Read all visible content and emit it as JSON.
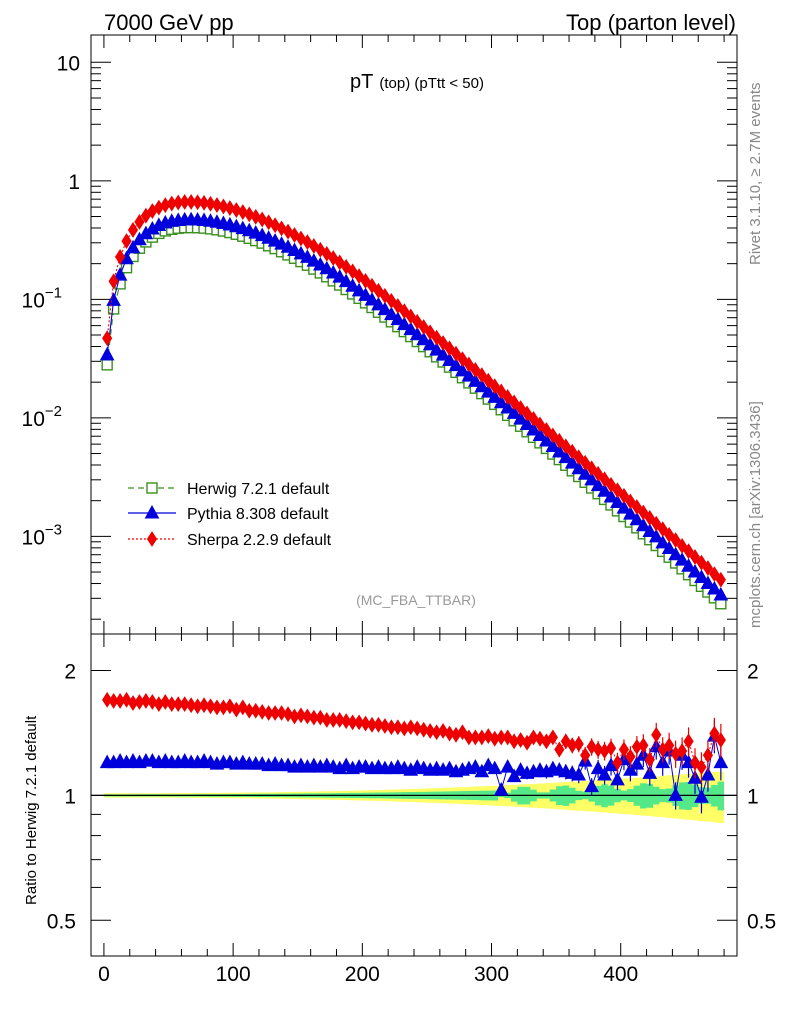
{
  "header": {
    "left": "7000 GeV pp",
    "right": "Top (parton level)"
  },
  "side_labels": {
    "rivet": "Rivet 3.1.10, ≥ 2.7M events",
    "mcplots": "mcplots.cern.ch [arXiv:1306.3436]"
  },
  "plot_title": {
    "main": "pT",
    "sub": "(top) (pTtt < 50)"
  },
  "watermark": "(MC_FBA_TTBAR)",
  "main_yticks": [
    {
      "base": "10",
      "exp": ""
    },
    {
      "base": "1",
      "exp": ""
    },
    {
      "base": "10",
      "exp": "−1"
    },
    {
      "base": "10",
      "exp": "−2"
    },
    {
      "base": "10",
      "exp": "−3"
    }
  ],
  "ratio_ylabel": "Ratio to Herwig 7.2.1 default",
  "ratio_yticks": [
    "2",
    "1",
    "0.5"
  ],
  "xticks": [
    "0",
    "100",
    "200",
    "300",
    "400"
  ],
  "colors": {
    "herwig": "#3a8f1f",
    "pythia": "#0000dd",
    "sherpa": "#ee0000",
    "band_inner": "#55e888",
    "band_outer": "#ffff66"
  },
  "chart_data": [
    {
      "type": "scatter",
      "title": "pT (top) (pTtt < 50)",
      "xlim": [
        -10,
        490
      ],
      "ylim": [
        0.00015,
        17
      ],
      "yscale": "log",
      "legend_position": "bottom-left",
      "x": [
        2.5,
        7.5,
        12.5,
        17.5,
        22.5,
        27.5,
        32.5,
        37.5,
        42.5,
        47.5,
        52.5,
        57.5,
        62.5,
        67.5,
        72.5,
        77.5,
        82.5,
        87.5,
        92.5,
        97.5,
        102.5,
        107.5,
        112.5,
        117.5,
        122.5,
        127.5,
        132.5,
        137.5,
        142.5,
        147.5,
        152.5,
        157.5,
        162.5,
        167.5,
        172.5,
        177.5,
        182.5,
        187.5,
        192.5,
        197.5,
        202.5,
        207.5,
        212.5,
        217.5,
        222.5,
        227.5,
        232.5,
        237.5,
        242.5,
        247.5,
        252.5,
        257.5,
        262.5,
        267.5,
        272.5,
        277.5,
        282.5,
        287.5,
        292.5,
        297.5,
        302.5,
        307.5,
        312.5,
        317.5,
        322.5,
        327.5,
        332.5,
        337.5,
        342.5,
        347.5,
        352.5,
        357.5,
        362.5,
        367.5,
        372.5,
        377.5,
        382.5,
        387.5,
        392.5,
        397.5,
        402.5,
        407.5,
        412.5,
        417.5,
        422.5,
        427.5,
        432.5,
        437.5,
        442.5,
        447.5,
        452.5,
        457.5,
        462.5,
        467.5,
        472.5,
        477.5
      ],
      "series": [
        {
          "name": "Herwig 7.2.1 default",
          "values": [
            0.028,
            0.083,
            0.135,
            0.185,
            0.23,
            0.27,
            0.305,
            0.335,
            0.36,
            0.378,
            0.39,
            0.398,
            0.402,
            0.403,
            0.402,
            0.399,
            0.393,
            0.386,
            0.377,
            0.366,
            0.354,
            0.341,
            0.327,
            0.313,
            0.298,
            0.283,
            0.268,
            0.252,
            0.237,
            0.222,
            0.208,
            0.194,
            0.18,
            0.167,
            0.155,
            0.143,
            0.132,
            0.121,
            0.111,
            0.102,
            0.0933,
            0.0853,
            0.0778,
            0.0709,
            0.0646,
            0.0588,
            0.0534,
            0.0485,
            0.044,
            0.0399,
            0.0361,
            0.0327,
            0.0296,
            0.0268,
            0.0242,
            0.0218,
            0.0197,
            0.0178,
            0.016,
            0.0144,
            0.013,
            0.0117,
            0.0105,
            0.00945,
            0.0085,
            0.00763,
            0.00685,
            0.00615,
            0.00552,
            0.00495,
            0.00444,
            0.00398,
            0.00357,
            0.0032,
            0.00286,
            0.00256,
            0.00229,
            0.00205,
            0.00184,
            0.00164,
            0.00147,
            0.00132,
            0.00118,
            0.00105,
            0.000937,
            0.000837,
            0.000747,
            0.000667,
            0.000596,
            0.000532,
            0.000475,
            0.000424,
            0.000379,
            0.000339,
            0.000303,
            0.00027
          ]
        },
        {
          "name": "Pythia 8.308 default",
          "values": [
            0.034,
            0.098,
            0.16,
            0.22,
            0.272,
            0.318,
            0.358,
            0.392,
            0.42,
            0.441,
            0.455,
            0.463,
            0.468,
            0.469,
            0.467,
            0.463,
            0.456,
            0.447,
            0.436,
            0.424,
            0.41,
            0.395,
            0.379,
            0.362,
            0.345,
            0.328,
            0.31,
            0.292,
            0.275,
            0.258,
            0.242,
            0.226,
            0.21,
            0.195,
            0.181,
            0.167,
            0.154,
            0.141,
            0.129,
            0.118,
            0.108,
            0.0987,
            0.0899,
            0.0818,
            0.0743,
            0.0675,
            0.0612,
            0.0555,
            0.0503,
            0.0456,
            0.0413,
            0.0373,
            0.0338,
            0.0305,
            0.0276,
            0.0249,
            0.0225,
            0.0203,
            0.0183,
            0.0165,
            0.0149,
            0.0134,
            0.0121,
            0.0109,
            0.00976,
            0.00878,
            0.0079,
            0.0071,
            0.00638,
            0.00573,
            0.00515,
            0.00462,
            0.00415,
            0.00372,
            0.00334,
            0.003,
            0.00268,
            0.0024,
            0.00215,
            0.00193,
            0.00173,
            0.00154,
            0.00138,
            0.00123,
            0.0011,
            0.00099,
            0.00088,
            0.00079,
            0.0007,
            0.00063,
            0.00056,
            0.0005,
            0.00045,
            0.0004,
            0.00036,
            0.00032
          ]
        },
        {
          "name": "Sherpa 2.2.9 default",
          "values": [
            0.047,
            0.142,
            0.228,
            0.31,
            0.385,
            0.45,
            0.508,
            0.556,
            0.594,
            0.623,
            0.643,
            0.656,
            0.663,
            0.664,
            0.66,
            0.652,
            0.64,
            0.625,
            0.608,
            0.589,
            0.567,
            0.545,
            0.521,
            0.497,
            0.472,
            0.447,
            0.422,
            0.397,
            0.373,
            0.349,
            0.326,
            0.304,
            0.282,
            0.262,
            0.242,
            0.223,
            0.205,
            0.188,
            0.172,
            0.157,
            0.143,
            0.13,
            0.118,
            0.107,
            0.097,
            0.0878,
            0.0794,
            0.0717,
            0.0647,
            0.0584,
            0.0527,
            0.0475,
            0.0428,
            0.0386,
            0.0348,
            0.0313,
            0.0282,
            0.0254,
            0.0229,
            0.0206,
            0.0185,
            0.0167,
            0.015,
            0.0135,
            0.0121,
            0.0109,
            0.0098,
            0.0088,
            0.0079,
            0.0071,
            0.0064,
            0.00575,
            0.00518,
            0.00465,
            0.00418,
            0.00375,
            0.00337,
            0.00303,
            0.00272,
            0.00245,
            0.0022,
            0.00197,
            0.00177,
            0.00159,
            0.00143,
            0.00128,
            0.00115,
            0.00103,
            0.00093,
            0.00083,
            0.00075,
            0.00067,
            0.0006,
            0.00054,
            0.00048,
            0.00043
          ]
        }
      ]
    },
    {
      "type": "scatter",
      "ylabel": "Ratio to Herwig 7.2.1 default",
      "xlim": [
        -10,
        490
      ],
      "ylim": [
        0.41,
        2.45
      ],
      "yscale": "log",
      "reference_line": 1,
      "x": [
        2.5,
        7.5,
        12.5,
        17.5,
        22.5,
        27.5,
        32.5,
        37.5,
        42.5,
        47.5,
        52.5,
        57.5,
        62.5,
        67.5,
        72.5,
        77.5,
        82.5,
        87.5,
        92.5,
        97.5,
        102.5,
        107.5,
        112.5,
        117.5,
        122.5,
        127.5,
        132.5,
        137.5,
        142.5,
        147.5,
        152.5,
        157.5,
        162.5,
        167.5,
        172.5,
        177.5,
        182.5,
        187.5,
        192.5,
        197.5,
        202.5,
        207.5,
        212.5,
        217.5,
        222.5,
        227.5,
        232.5,
        237.5,
        242.5,
        247.5,
        252.5,
        257.5,
        262.5,
        267.5,
        272.5,
        277.5,
        282.5,
        287.5,
        292.5,
        297.5,
        302.5,
        307.5,
        312.5,
        317.5,
        322.5,
        327.5,
        332.5,
        337.5,
        342.5,
        347.5,
        352.5,
        357.5,
        362.5,
        367.5,
        372.5,
        377.5,
        382.5,
        387.5,
        392.5,
        397.5,
        402.5,
        407.5,
        412.5,
        417.5,
        422.5,
        427.5,
        432.5,
        437.5,
        442.5,
        447.5,
        452.5,
        457.5,
        462.5,
        467.5,
        472.5,
        477.5
      ],
      "series": [
        {
          "name": "Pythia 8.308 default",
          "values": [
            1.2,
            1.2,
            1.21,
            1.2,
            1.21,
            1.2,
            1.21,
            1.21,
            1.2,
            1.21,
            1.2,
            1.2,
            1.21,
            1.2,
            1.2,
            1.21,
            1.2,
            1.19,
            1.2,
            1.2,
            1.19,
            1.2,
            1.19,
            1.19,
            1.19,
            1.18,
            1.19,
            1.18,
            1.18,
            1.17,
            1.18,
            1.17,
            1.18,
            1.17,
            1.18,
            1.17,
            1.16,
            1.18,
            1.16,
            1.17,
            1.17,
            1.16,
            1.17,
            1.16,
            1.16,
            1.17,
            1.16,
            1.15,
            1.17,
            1.16,
            1.15,
            1.16,
            1.15,
            1.16,
            1.14,
            1.15,
            1.16,
            1.17,
            1.14,
            1.18,
            1.16,
            1.03,
            1.17,
            1.11,
            1.15,
            1.13,
            1.14,
            1.15,
            1.14,
            1.16,
            1.15,
            1.14,
            1.13,
            1.12,
            1.21,
            1.05,
            1.16,
            1.12,
            1.18,
            1.09,
            1.22,
            1.15,
            1.19,
            1.25,
            1.13,
            1.31,
            1.2,
            1.28,
            1.0,
            1.25,
            1.2,
            1.1,
            0.99,
            1.12,
            1.39,
            1.2
          ]
        },
        {
          "name": "Sherpa 2.2.9 default",
          "values": [
            1.7,
            1.69,
            1.69,
            1.7,
            1.67,
            1.68,
            1.69,
            1.68,
            1.66,
            1.68,
            1.66,
            1.66,
            1.66,
            1.65,
            1.64,
            1.65,
            1.64,
            1.63,
            1.63,
            1.64,
            1.61,
            1.63,
            1.6,
            1.6,
            1.59,
            1.58,
            1.58,
            1.58,
            1.57,
            1.55,
            1.56,
            1.55,
            1.54,
            1.54,
            1.52,
            1.52,
            1.52,
            1.51,
            1.5,
            1.5,
            1.49,
            1.48,
            1.48,
            1.47,
            1.46,
            1.46,
            1.45,
            1.46,
            1.45,
            1.44,
            1.43,
            1.42,
            1.43,
            1.41,
            1.4,
            1.42,
            1.38,
            1.38,
            1.38,
            1.39,
            1.37,
            1.38,
            1.38,
            1.35,
            1.36,
            1.34,
            1.38,
            1.37,
            1.35,
            1.38,
            1.29,
            1.35,
            1.32,
            1.33,
            1.25,
            1.31,
            1.29,
            1.28,
            1.3,
            1.2,
            1.29,
            1.24,
            1.31,
            1.32,
            1.22,
            1.4,
            1.29,
            1.32,
            1.26,
            1.28,
            1.35,
            1.2,
            1.17,
            1.25,
            1.41,
            1.36
          ]
        }
      ]
    }
  ]
}
